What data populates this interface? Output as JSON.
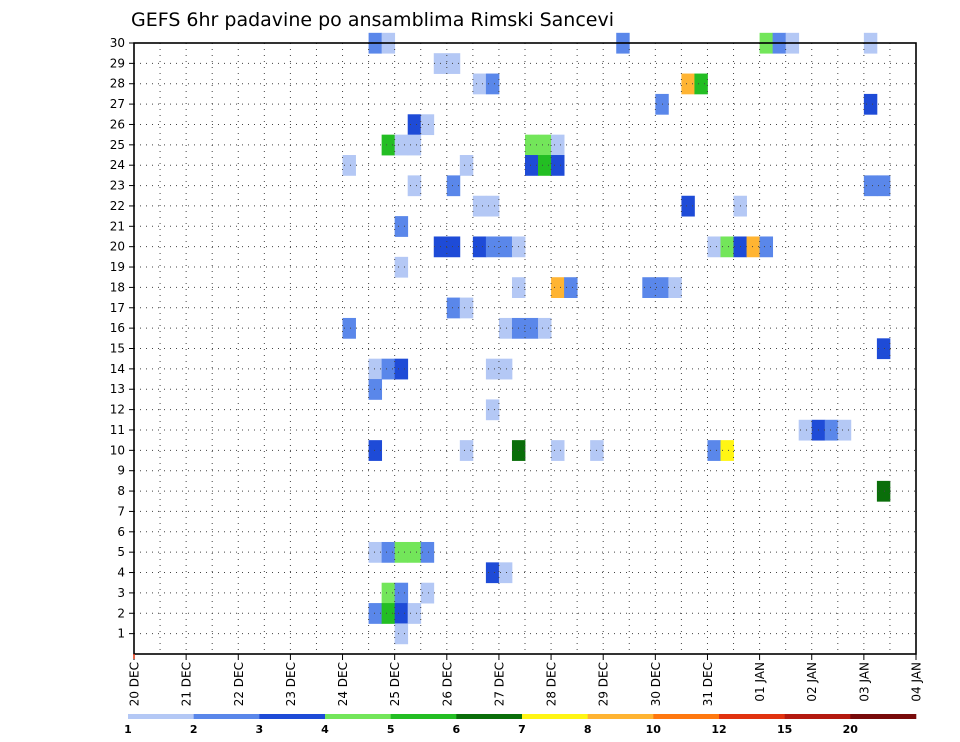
{
  "chart_data": {
    "type": "heatmap",
    "title": "GEFS 6hr padavine po ansamblima Rimski Sancevi",
    "xlabel": "",
    "ylabel": "",
    "x_tick_labels": [
      "20 DEC",
      "21 DEC",
      "22 DEC",
      "23 DEC",
      "24 DEC",
      "25 DEC",
      "26 DEC",
      "27 DEC",
      "28 DEC",
      "29 DEC",
      "30 DEC",
      "31 DEC",
      "01 JAN",
      "02 JAN",
      "03 JAN",
      "04 JAN"
    ],
    "x_range_days": [
      0,
      15
    ],
    "step_hours": 6,
    "y_tick_labels": [
      "1",
      "2",
      "3",
      "4",
      "5",
      "6",
      "7",
      "8",
      "9",
      "10",
      "11",
      "12",
      "13",
      "14",
      "15",
      "16",
      "17",
      "18",
      "19",
      "20",
      "21",
      "22",
      "23",
      "24",
      "25",
      "26",
      "27",
      "28",
      "29",
      "30"
    ],
    "y_range": [
      0,
      30
    ],
    "grid": true,
    "colorbar": {
      "labels": [
        "1",
        "2",
        "3",
        "4",
        "5",
        "6",
        "7",
        "8",
        "10",
        "12",
        "15",
        "20"
      ],
      "colors": [
        "#b4c8f5",
        "#5a87ea",
        "#1e4bd7",
        "#73e65a",
        "#23be23",
        "#0a6e0a",
        "#fff514",
        "#ffb432",
        "#ff780f",
        "#e1320f",
        "#b4190f",
        "#780a0a"
      ]
    },
    "cells": [
      {
        "m": 30,
        "s": 18,
        "c": 2
      },
      {
        "m": 30,
        "s": 19,
        "c": 1
      },
      {
        "m": 30,
        "s": 37,
        "c": 2
      },
      {
        "m": 30,
        "s": 48,
        "c": 4
      },
      {
        "m": 30,
        "s": 49,
        "c": 2
      },
      {
        "m": 30,
        "s": 50,
        "c": 1
      },
      {
        "m": 30,
        "s": 56,
        "c": 1
      },
      {
        "m": 29,
        "s": 23,
        "c": 1
      },
      {
        "m": 29,
        "s": 24,
        "c": 1
      },
      {
        "m": 28,
        "s": 26,
        "c": 1
      },
      {
        "m": 28,
        "s": 27,
        "c": 2
      },
      {
        "m": 28,
        "s": 42,
        "c": 8
      },
      {
        "m": 28,
        "s": 43,
        "c": 5
      },
      {
        "m": 27,
        "s": 40,
        "c": 2
      },
      {
        "m": 27,
        "s": 56,
        "c": 3
      },
      {
        "m": 26,
        "s": 21,
        "c": 3
      },
      {
        "m": 26,
        "s": 22,
        "c": 1
      },
      {
        "m": 25,
        "s": 19,
        "c": 5
      },
      {
        "m": 25,
        "s": 20,
        "c": 1
      },
      {
        "m": 25,
        "s": 21,
        "c": 1
      },
      {
        "m": 25,
        "s": 30,
        "c": 4
      },
      {
        "m": 25,
        "s": 31,
        "c": 4
      },
      {
        "m": 25,
        "s": 32,
        "c": 1
      },
      {
        "m": 24,
        "s": 16,
        "c": 1
      },
      {
        "m": 24,
        "s": 25,
        "c": 1
      },
      {
        "m": 24,
        "s": 30,
        "c": 3
      },
      {
        "m": 24,
        "s": 31,
        "c": 5
      },
      {
        "m": 24,
        "s": 32,
        "c": 3
      },
      {
        "m": 23,
        "s": 21,
        "c": 1
      },
      {
        "m": 23,
        "s": 24,
        "c": 2
      },
      {
        "m": 23,
        "s": 56,
        "c": 2
      },
      {
        "m": 23,
        "s": 57,
        "c": 2
      },
      {
        "m": 22,
        "s": 26,
        "c": 1
      },
      {
        "m": 22,
        "s": 27,
        "c": 1
      },
      {
        "m": 22,
        "s": 42,
        "c": 3
      },
      {
        "m": 22,
        "s": 46,
        "c": 1
      },
      {
        "m": 21,
        "s": 20,
        "c": 2
      },
      {
        "m": 20,
        "s": 23,
        "c": 3
      },
      {
        "m": 20,
        "s": 24,
        "c": 3
      },
      {
        "m": 20,
        "s": 26,
        "c": 3
      },
      {
        "m": 20,
        "s": 27,
        "c": 2
      },
      {
        "m": 20,
        "s": 28,
        "c": 2
      },
      {
        "m": 20,
        "s": 29,
        "c": 1
      },
      {
        "m": 20,
        "s": 44,
        "c": 1
      },
      {
        "m": 20,
        "s": 45,
        "c": 4
      },
      {
        "m": 20,
        "s": 46,
        "c": 3
      },
      {
        "m": 20,
        "s": 47,
        "c": 8
      },
      {
        "m": 20,
        "s": 48,
        "c": 2
      },
      {
        "m": 19,
        "s": 20,
        "c": 1
      },
      {
        "m": 18,
        "s": 29,
        "c": 1
      },
      {
        "m": 18,
        "s": 32,
        "c": 8
      },
      {
        "m": 18,
        "s": 33,
        "c": 2
      },
      {
        "m": 18,
        "s": 39,
        "c": 2
      },
      {
        "m": 18,
        "s": 40,
        "c": 2
      },
      {
        "m": 18,
        "s": 41,
        "c": 1
      },
      {
        "m": 17,
        "s": 24,
        "c": 2
      },
      {
        "m": 17,
        "s": 25,
        "c": 1
      },
      {
        "m": 16,
        "s": 16,
        "c": 2
      },
      {
        "m": 16,
        "s": 28,
        "c": 1
      },
      {
        "m": 16,
        "s": 29,
        "c": 2
      },
      {
        "m": 16,
        "s": 30,
        "c": 2
      },
      {
        "m": 16,
        "s": 31,
        "c": 1
      },
      {
        "m": 15,
        "s": 57,
        "c": 3
      },
      {
        "m": 14,
        "s": 18,
        "c": 1
      },
      {
        "m": 14,
        "s": 19,
        "c": 2
      },
      {
        "m": 14,
        "s": 20,
        "c": 3
      },
      {
        "m": 14,
        "s": 27,
        "c": 1
      },
      {
        "m": 14,
        "s": 28,
        "c": 1
      },
      {
        "m": 13,
        "s": 18,
        "c": 2
      },
      {
        "m": 12,
        "s": 27,
        "c": 1
      },
      {
        "m": 11,
        "s": 51,
        "c": 1
      },
      {
        "m": 11,
        "s": 52,
        "c": 3
      },
      {
        "m": 11,
        "s": 53,
        "c": 2
      },
      {
        "m": 11,
        "s": 54,
        "c": 1
      },
      {
        "m": 10,
        "s": 18,
        "c": 3
      },
      {
        "m": 10,
        "s": 25,
        "c": 1
      },
      {
        "m": 10,
        "s": 29,
        "c": 6
      },
      {
        "m": 10,
        "s": 32,
        "c": 1
      },
      {
        "m": 10,
        "s": 35,
        "c": 1
      },
      {
        "m": 10,
        "s": 44,
        "c": 2
      },
      {
        "m": 10,
        "s": 45,
        "c": 7
      },
      {
        "m": 8,
        "s": 57,
        "c": 6
      },
      {
        "m": 5,
        "s": 18,
        "c": 1
      },
      {
        "m": 5,
        "s": 19,
        "c": 2
      },
      {
        "m": 5,
        "s": 20,
        "c": 4
      },
      {
        "m": 5,
        "s": 21,
        "c": 4
      },
      {
        "m": 5,
        "s": 22,
        "c": 2
      },
      {
        "m": 4,
        "s": 27,
        "c": 3
      },
      {
        "m": 4,
        "s": 28,
        "c": 1
      },
      {
        "m": 3,
        "s": 19,
        "c": 4
      },
      {
        "m": 3,
        "s": 20,
        "c": 2
      },
      {
        "m": 3,
        "s": 22,
        "c": 1
      },
      {
        "m": 2,
        "s": 18,
        "c": 2
      },
      {
        "m": 2,
        "s": 19,
        "c": 5
      },
      {
        "m": 2,
        "s": 20,
        "c": 3
      },
      {
        "m": 2,
        "s": 21,
        "c": 1
      },
      {
        "m": 1,
        "s": 20,
        "c": 1
      }
    ]
  }
}
